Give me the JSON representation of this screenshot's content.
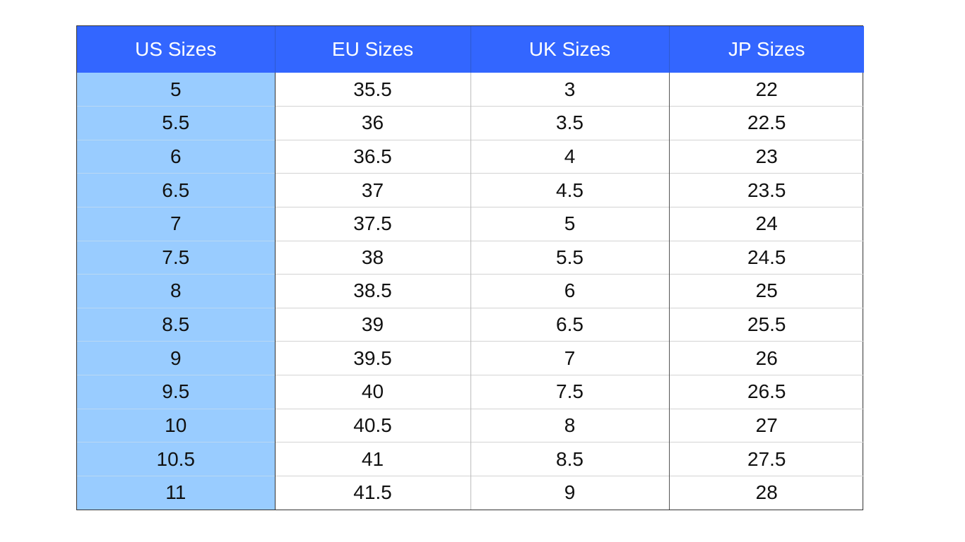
{
  "colors": {
    "header_bg": "#3366ff",
    "us_column_bg": "#99ccff"
  },
  "table": {
    "headers": [
      "US Sizes",
      "EU Sizes",
      "UK Sizes",
      "JP Sizes"
    ],
    "rows": [
      [
        "5",
        "35.5",
        "3",
        "22"
      ],
      [
        "5.5",
        "36",
        "3.5",
        "22.5"
      ],
      [
        "6",
        "36.5",
        "4",
        "23"
      ],
      [
        "6.5",
        "37",
        "4.5",
        "23.5"
      ],
      [
        "7",
        "37.5",
        "5",
        "24"
      ],
      [
        "7.5",
        "38",
        "5.5",
        "24.5"
      ],
      [
        "8",
        "38.5",
        "6",
        "25"
      ],
      [
        "8.5",
        "39",
        "6.5",
        "25.5"
      ],
      [
        "9",
        "39.5",
        "7",
        "26"
      ],
      [
        "9.5",
        "40",
        "7.5",
        "26.5"
      ],
      [
        "10",
        "40.5",
        "8",
        "27"
      ],
      [
        "10.5",
        "41",
        "8.5",
        "27.5"
      ],
      [
        "11",
        "41.5",
        "9",
        "28"
      ]
    ]
  }
}
